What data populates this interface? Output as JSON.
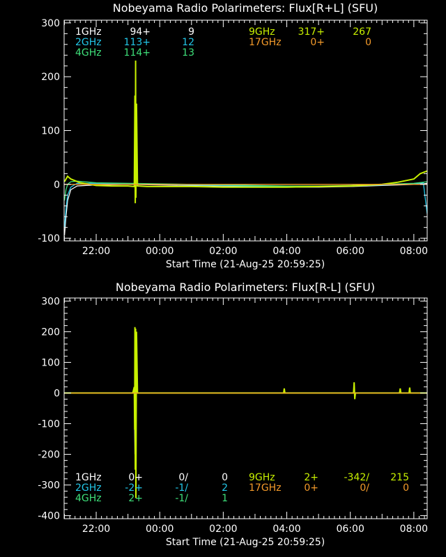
{
  "colors": {
    "bg": "#000000",
    "axis": "#ffffff",
    "c1GHz": "#ffffff",
    "c2GHz": "#22c7e8",
    "c4GHz": "#3ee07a",
    "c9GHz": "#c8f000",
    "c17GHz": "#f39a2a"
  },
  "chart_data": [
    {
      "type": "line",
      "title": "Nobeyama Radio Polarimeters: Flux[R+L] (SFU)",
      "xlabel": "Start Time (21-Aug-25 20:59:25)",
      "x_tick_labels": [
        "22:00",
        "00:00",
        "02:00",
        "04:00",
        "06:00",
        "08:00"
      ],
      "x_tick_hours": [
        22,
        24,
        26,
        28,
        30,
        32
      ],
      "xlim_hours": [
        20.99,
        32.42
      ],
      "ylim": [
        -105,
        305
      ],
      "y_ticks": [
        -100,
        0,
        100,
        200,
        300
      ],
      "y_tick_labels": [
        "-100",
        "0",
        "100",
        "200",
        "300"
      ],
      "legend_rows": [
        {
          "freq": "1GHz",
          "a": "94+",
          "b": "9",
          "color_key": "c1GHz"
        },
        {
          "freq": "2GHz",
          "a": "113+",
          "b": "12",
          "color_key": "c2GHz"
        },
        {
          "freq": "4GHz",
          "a": "114+",
          "b": "13",
          "color_key": "c4GHz"
        },
        {
          "freq": "9GHz",
          "a": "317+",
          "b": "267",
          "color_key": "c9GHz"
        },
        {
          "freq": "17GHz",
          "a": "0+",
          "b": "0",
          "color_key": "c17GHz"
        }
      ],
      "series": [
        {
          "name": "1GHz",
          "color_key": "c1GHz",
          "x": [
            21.0,
            21.05,
            21.1,
            21.2,
            21.4,
            22.0,
            23.0,
            24.0,
            25.0,
            26.0,
            27.0,
            28.0,
            29.0,
            30.0,
            31.0,
            32.0,
            32.3,
            32.42
          ],
          "y": [
            -95,
            -60,
            -30,
            -10,
            -3,
            -1,
            0,
            -1,
            -2,
            -3,
            -4,
            -5,
            -5,
            -4,
            -2,
            0,
            1,
            2
          ]
        },
        {
          "name": "2GHz",
          "color_key": "c2GHz",
          "x": [
            21.0,
            21.05,
            21.1,
            21.2,
            21.4,
            22.0,
            23.0,
            24.0,
            25.0,
            26.0,
            27.0,
            28.0,
            29.0,
            30.0,
            31.0,
            32.0,
            32.3,
            32.42
          ],
          "y": [
            -80,
            -45,
            -20,
            -5,
            2,
            2,
            1,
            0,
            -1,
            -2,
            -3,
            -4,
            -4,
            -3,
            -1,
            1,
            3,
            -55
          ]
        },
        {
          "name": "4GHz",
          "color_key": "c4GHz",
          "x": [
            21.0,
            21.05,
            21.1,
            21.2,
            21.4,
            22.0,
            23.0,
            24.0,
            25.0,
            26.0,
            27.0,
            28.0,
            29.0,
            30.0,
            31.0,
            32.0,
            32.3,
            32.42
          ],
          "y": [
            -30,
            -10,
            0,
            5,
            6,
            3,
            2,
            1,
            0,
            -1,
            -2,
            -3,
            -3,
            -2,
            0,
            2,
            4,
            5
          ]
        },
        {
          "name": "9GHz",
          "color_key": "c9GHz",
          "x": [
            21.0,
            21.1,
            21.2,
            21.5,
            22.0,
            22.5,
            23.0,
            23.2,
            23.22,
            23.23,
            23.24,
            23.25,
            23.27,
            23.3,
            23.6,
            24.0,
            25.0,
            26.0,
            27.0,
            28.0,
            29.0,
            30.0,
            31.0,
            31.5,
            32.0,
            32.2,
            32.42
          ],
          "y": [
            5,
            15,
            10,
            3,
            -2,
            -3,
            -3,
            -4,
            165,
            -35,
            230,
            -25,
            150,
            -3,
            -4,
            -4,
            -4,
            -5,
            -5,
            -5,
            -4,
            -3,
            0,
            4,
            10,
            20,
            25
          ]
        },
        {
          "name": "17GHz",
          "color_key": "c17GHz",
          "x": [
            21.0,
            32.42
          ],
          "y": [
            0,
            0
          ]
        }
      ]
    },
    {
      "type": "line",
      "title": "Nobeyama Radio Polarimeters: Flux[R-L] (SFU)",
      "xlabel": "Start Time (21-Aug-25 20:59:25)",
      "x_tick_labels": [
        "22:00",
        "00:00",
        "02:00",
        "04:00",
        "06:00",
        "08:00"
      ],
      "x_tick_hours": [
        22,
        24,
        26,
        28,
        30,
        32
      ],
      "xlim_hours": [
        20.99,
        32.42
      ],
      "ylim": [
        -410,
        310
      ],
      "y_ticks": [
        -400,
        -300,
        -200,
        -100,
        0,
        100,
        200,
        300
      ],
      "y_tick_labels": [
        "-400",
        "-300",
        "-200",
        "-100",
        "0",
        "100",
        "200",
        "300"
      ],
      "legend_rows": [
        {
          "freq": "1GHz",
          "a": "0+",
          "b": "0/",
          "c": "0",
          "color_key": "c1GHz"
        },
        {
          "freq": "2GHz",
          "a": "-2+",
          "b": "-1/",
          "c": "2",
          "color_key": "c2GHz"
        },
        {
          "freq": "4GHz",
          "a": "2+",
          "b": "-1/",
          "c": "1",
          "color_key": "c4GHz"
        },
        {
          "freq": "9GHz",
          "a": "2+",
          "b": "-342/",
          "c": "215",
          "color_key": "c9GHz"
        },
        {
          "freq": "17GHz",
          "a": "0+",
          "b": "0/",
          "c": "0",
          "color_key": "c17GHz"
        }
      ],
      "series": [
        {
          "name": "1GHz",
          "color_key": "c1GHz",
          "x": [
            21.0,
            23.2,
            23.22,
            23.24,
            32.42
          ],
          "y": [
            0,
            0,
            -200,
            0,
            0
          ]
        },
        {
          "name": "2GHz",
          "color_key": "c2GHz",
          "x": [
            21.0,
            24.0,
            27.0,
            30.0,
            32.42
          ],
          "y": [
            -1,
            -1,
            -1,
            -1,
            -1
          ]
        },
        {
          "name": "4GHz",
          "color_key": "c4GHz",
          "x": [
            21.0,
            24.0,
            27.0,
            30.0,
            32.42
          ],
          "y": [
            1,
            1,
            1,
            1,
            1
          ]
        },
        {
          "name": "9GHz",
          "color_key": "c9GHz",
          "x": [
            21.0,
            23.15,
            23.2,
            23.21,
            23.22,
            23.23,
            23.24,
            23.25,
            23.27,
            23.3,
            27.9,
            27.92,
            27.94,
            30.1,
            30.12,
            30.14,
            30.16,
            31.55,
            31.57,
            31.59,
            31.85,
            31.87,
            31.89,
            32.42
          ],
          "y": [
            0,
            0,
            20,
            -120,
            215,
            -250,
            210,
            -342,
            200,
            0,
            0,
            15,
            0,
            0,
            35,
            -20,
            0,
            0,
            15,
            0,
            0,
            18,
            0,
            0
          ]
        },
        {
          "name": "17GHz",
          "color_key": "c17GHz",
          "x": [
            21.0,
            32.42
          ],
          "y": [
            0,
            0
          ]
        }
      ]
    }
  ]
}
